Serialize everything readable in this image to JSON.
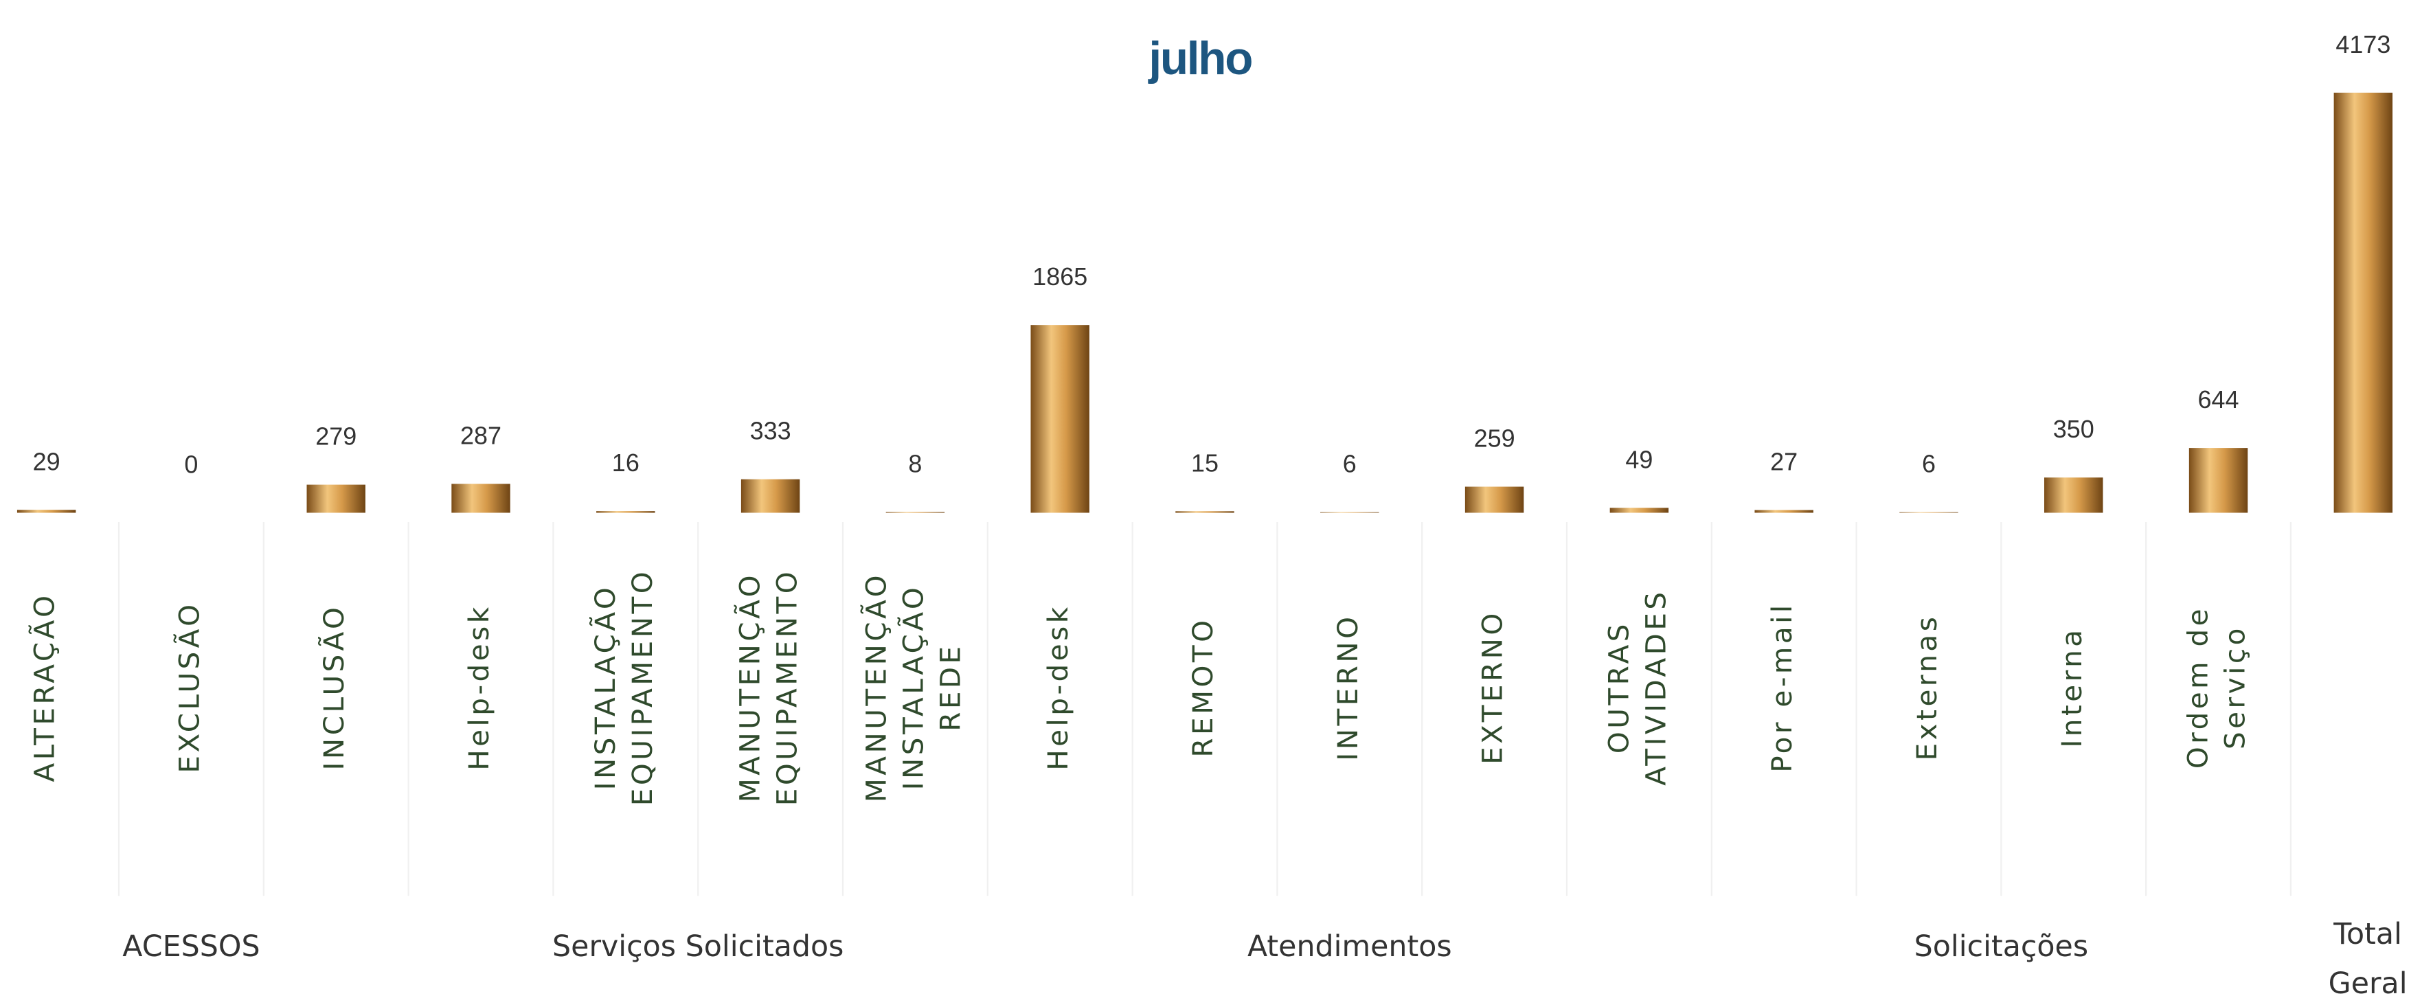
{
  "chart_data": {
    "type": "bar",
    "title": "julho",
    "color": "#c8913f",
    "groups": [
      {
        "name": "ACESSOS",
        "categories": [
          [
            "ALTERAÇÃO"
          ],
          [
            "EXCLUSÃO"
          ],
          [
            "INCLUSÃO"
          ]
        ],
        "values": [
          29,
          0,
          279
        ]
      },
      {
        "name": "Serviços Solicitados",
        "categories": [
          [
            "Help-desk"
          ],
          [
            "INSTALAÇÃO",
            "EQUIPAMENTO"
          ],
          [
            "MANUTENÇÃO",
            "EQUIPAMENTO"
          ],
          [
            "MANUTENÇÃO",
            "INSTALAÇÃO",
            "REDE"
          ]
        ],
        "values": [
          287,
          16,
          333,
          8
        ]
      },
      {
        "name": "Atendimentos",
        "categories": [
          [
            "Help-desk"
          ],
          [
            "REMOTO"
          ],
          [
            "INTERNO"
          ],
          [
            "EXTERNO"
          ],
          [
            "OUTRAS",
            "ATIVIDADES"
          ]
        ],
        "values": [
          1865,
          15,
          6,
          259,
          49
        ]
      },
      {
        "name": "Solicitações",
        "categories": [
          [
            "Por e-mail"
          ],
          [
            "Externas"
          ],
          [
            "Interna"
          ],
          [
            "Ordem de",
            "Serviço"
          ]
        ],
        "values": [
          27,
          6,
          350,
          644
        ]
      },
      {
        "name": [
          "Total",
          "Geral"
        ],
        "categories": [
          []
        ],
        "values": [
          4173
        ]
      }
    ]
  }
}
